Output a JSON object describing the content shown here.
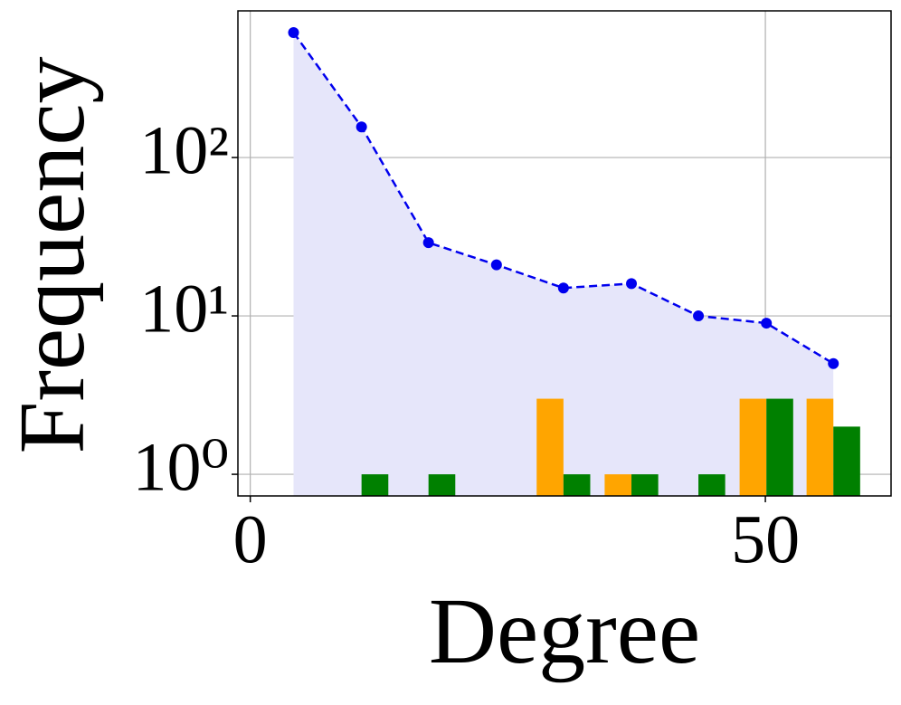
{
  "chart_data": {
    "type": "line_bar",
    "x_label": "Degree",
    "y_label": "Frequency",
    "x": [
      4.2,
      10.8,
      17.3,
      23.9,
      30.4,
      37.0,
      43.5,
      50.1,
      56.6
    ],
    "series": [
      {
        "kind": "line",
        "color": "#0000ee",
        "fill_color": "#e6e6fa",
        "values": [
          615,
          156,
          29,
          21,
          15,
          16,
          10,
          9,
          5
        ]
      },
      {
        "kind": "bar",
        "color": "#ffa500",
        "values": [
          null,
          null,
          null,
          null,
          3,
          1,
          null,
          3,
          3
        ]
      },
      {
        "kind": "bar",
        "color": "#008000",
        "values": [
          null,
          1,
          1,
          null,
          1,
          1,
          1,
          3,
          2
        ]
      }
    ],
    "bar_width": 2.6,
    "xlim": [
      -1.2,
      62.2
    ],
    "xticks": [
      0,
      50
    ],
    "ylim": [
      0.73,
      843
    ],
    "yticks": [
      {
        "value": 1,
        "label": "10⁰"
      },
      {
        "value": 10,
        "label": "10¹"
      },
      {
        "value": 100,
        "label": "10²"
      }
    ],
    "y_log": true,
    "grid": true
  }
}
